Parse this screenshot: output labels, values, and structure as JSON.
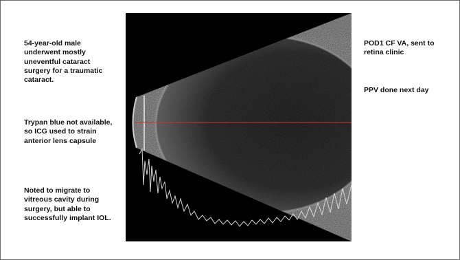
{
  "slide": {
    "left_notes": [
      "54-year-old male underwent mostly uneventful cataract surgery for a traumatic cataract.",
      "Trypan blue not available, so ICG used to strain anterior lens capsule",
      "Noted to migrate to vitreous cavity during surgery, but able to successfully implant IOL."
    ],
    "right_notes": [
      "POD1 CF VA, sent to retina clinic",
      "PPV done next day"
    ]
  },
  "image": {
    "type": "ocular B-scan ultrasound",
    "marker_color": "#c0392b"
  }
}
